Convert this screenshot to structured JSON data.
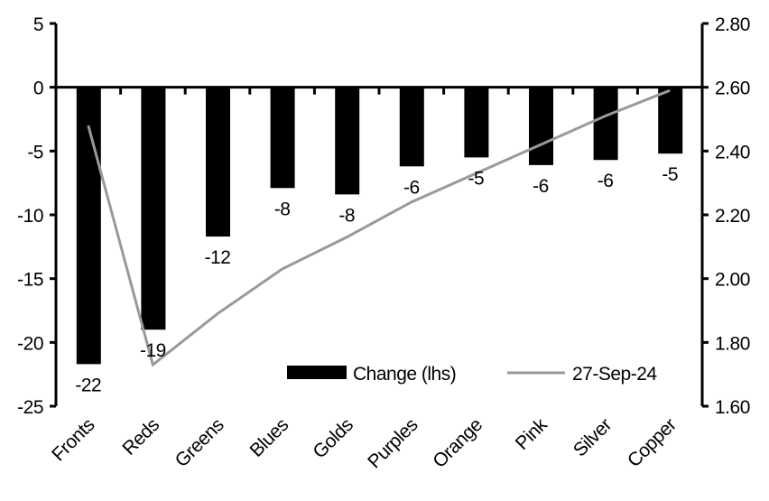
{
  "chart_data": {
    "type": "bar+line",
    "categories": [
      "Fronts",
      "Reds",
      "Greens",
      "Blues",
      "Golds",
      "Purples",
      "Orange",
      "Pink",
      "Silver",
      "Copper"
    ],
    "series": [
      {
        "name": "Change (lhs)",
        "type": "bar",
        "axis": "left",
        "color": "#000000",
        "values": [
          -21.7,
          -19.0,
          -11.7,
          -7.9,
          -8.4,
          -6.2,
          -5.5,
          -6.1,
          -5.7,
          -5.2
        ],
        "labels": [
          "-22",
          "-19",
          "-12",
          "-8",
          "-8",
          "-6",
          "-5",
          "-6",
          "-6",
          "-5"
        ]
      },
      {
        "name": "27-Sep-24",
        "type": "line",
        "axis": "right",
        "color": "#999999",
        "values": [
          2.48,
          1.73,
          1.89,
          2.03,
          2.13,
          2.24,
          2.33,
          2.42,
          2.51,
          2.59
        ]
      }
    ],
    "y_left": {
      "range": [
        -25,
        5
      ],
      "ticks": [
        "5",
        "0",
        "-5",
        "-10",
        "-15",
        "-20",
        "-25"
      ]
    },
    "y_right": {
      "range": [
        1.6,
        2.8
      ],
      "ticks": [
        "2.80",
        "2.60",
        "2.40",
        "2.20",
        "2.00",
        "1.80",
        "1.60"
      ]
    },
    "legend_placement": "bottom-right",
    "grid": false
  }
}
